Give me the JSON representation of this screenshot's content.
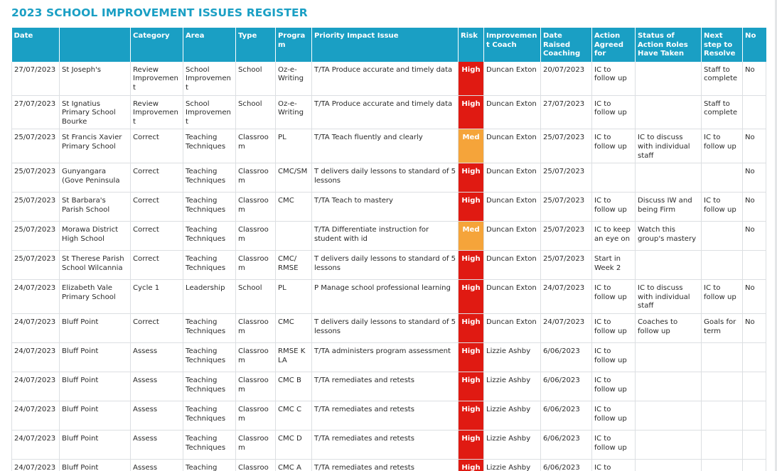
{
  "page": {
    "title": "2023 SCHOOL IMPROVEMENT ISSUES REGISTER"
  },
  "colors": {
    "header_bg": "#1a9fc4",
    "title": "#1a9fc4",
    "risk_high": "#e01a12",
    "risk_med": "#f5a43a"
  },
  "table": {
    "headers": {
      "date": "Date",
      "school": "",
      "category": "Category",
      "area": "Area",
      "type": "Type",
      "program": "Program",
      "issue": "Priority Impact Issue",
      "risk": "Risk",
      "coach": "Improvement Coach",
      "raised": "Date Raised Coaching",
      "action": "Action Agreed for",
      "status": "Status of Action Roles Have Taken",
      "next": "Next step to Resolve",
      "no": "No"
    },
    "rows": [
      {
        "date": "27/07/2023",
        "school": "St Joseph's",
        "category": "Review Improvement",
        "area": "School Improvement",
        "type": "School",
        "program": "Oz-e-Writing",
        "issue": "T/TA Produce accurate and timely data",
        "risk": "High",
        "risk_level": "high",
        "coach": "Duncan Exton",
        "raised": "20/07/2023",
        "action": "IC to follow up",
        "status": "",
        "next": "Staff to complete",
        "no": "No"
      },
      {
        "date": "27/07/2023",
        "school": "St Ignatius Primary School Bourke",
        "category": "Review Improvement",
        "area": "School Improvement",
        "type": "School",
        "program": "Oz-e-Writing",
        "issue": "T/TA Produce accurate and timely data",
        "risk": "High",
        "risk_level": "high",
        "coach": "Duncan Exton",
        "raised": "27/07/2023",
        "action": "IC to follow up",
        "status": "",
        "next": "Staff to complete",
        "no": ""
      },
      {
        "date": "25/07/2023",
        "school": "St Francis Xavier Primary School",
        "category": "Correct",
        "area": "Teaching Techniques",
        "type": "Classroom",
        "program": "PL",
        "issue": "T/TA Teach fluently and clearly",
        "risk": "Med",
        "risk_level": "med",
        "coach": "Duncan Exton",
        "raised": "25/07/2023",
        "action": "IC to follow up",
        "status": "IC to discuss with individual staff",
        "next": "IC to follow up",
        "no": "No"
      },
      {
        "date": "25/07/2023",
        "school": "Gunyangara (Gove Peninsula",
        "category": "Correct",
        "area": "Teaching Techniques",
        "type": "Classroom",
        "program": "CMC/SM",
        "issue": "T delivers daily lessons to standard of 5 lessons",
        "risk": "High",
        "risk_level": "high",
        "coach": "Duncan Exton",
        "raised": "25/07/2023",
        "action": "",
        "status": "",
        "next": "",
        "no": "No"
      },
      {
        "date": "25/07/2023",
        "school": "St Barbara's Parish School",
        "category": "Correct",
        "area": "Teaching Techniques",
        "type": "Classroom",
        "program": "CMC",
        "issue": "T/TA Teach to mastery",
        "risk": "High",
        "risk_level": "high",
        "coach": "Duncan Exton",
        "raised": "25/07/2023",
        "action": "IC to follow up",
        "status": "Discuss IW and being Firm",
        "next": "IC to follow up",
        "no": "No"
      },
      {
        "date": "25/07/2023",
        "school": "Morawa District High School",
        "category": "Correct",
        "area": "Teaching Techniques",
        "type": "Classroom",
        "program": "",
        "issue": "T/TA Differentiate instruction for student with id",
        "risk": "Med",
        "risk_level": "med",
        "coach": "Duncan Exton",
        "raised": "25/07/2023",
        "action": "IC to keep an eye on",
        "status": "Watch this group's mastery",
        "next": "",
        "no": "No"
      },
      {
        "date": "25/07/2023",
        "school": "St Therese Parish School Wilcannia",
        "category": "Correct",
        "area": "Teaching Techniques",
        "type": "Classroom",
        "program": "CMC/ RMSE",
        "issue": "T delivers daily lessons to standard of 5 lessons",
        "risk": "High",
        "risk_level": "high",
        "coach": "Duncan Exton",
        "raised": "25/07/2023",
        "action": "Start in Week 2",
        "status": "",
        "next": "",
        "no": ""
      },
      {
        "date": "24/07/2023",
        "school": "Elizabeth Vale Primary School",
        "category": "Cycle 1",
        "area": "Leadership",
        "type": "School",
        "program": "PL",
        "issue": "P Manage school professional learning",
        "risk": "High",
        "risk_level": "high",
        "coach": "Duncan Exton",
        "raised": "24/07/2023",
        "action": "IC to follow up",
        "status": "IC to discuss with individual staff",
        "next": "IC to follow up",
        "no": "No"
      },
      {
        "date": "24/07/2023",
        "school": "Bluff Point",
        "category": "Correct",
        "area": "Teaching Techniques",
        "type": "Classroom",
        "program": "CMC",
        "issue": "T delivers daily lessons to standard of 5 lessons",
        "risk": "High",
        "risk_level": "high",
        "coach": "Duncan Exton",
        "raised": "24/07/2023",
        "action": "IC to follow up",
        "status": "Coaches to follow up",
        "next": "Goals for term",
        "no": "No"
      },
      {
        "date": "24/07/2023",
        "school": "Bluff Point",
        "category": "Assess",
        "area": "Teaching Techniques",
        "type": "Classroom",
        "program": "RMSE K LA",
        "issue": "T/TA administers program assessment",
        "risk": "High",
        "risk_level": "high",
        "coach": "Lizzie Ashby",
        "raised": "6/06/2023",
        "action": "IC to follow up",
        "status": "",
        "next": "",
        "no": ""
      },
      {
        "date": "24/07/2023",
        "school": "Bluff Point",
        "category": "Assess",
        "area": "Teaching Techniques",
        "type": "Classroom",
        "program": "CMC B",
        "issue": "T/TA remediates and retests",
        "risk": "High",
        "risk_level": "high",
        "coach": "Lizzie Ashby",
        "raised": "6/06/2023",
        "action": "IC to follow up",
        "status": "",
        "next": "",
        "no": ""
      },
      {
        "date": "24/07/2023",
        "school": "Bluff Point",
        "category": "Assess",
        "area": "Teaching Techniques",
        "type": "Classroom",
        "program": "CMC C",
        "issue": "T/TA remediates and retests",
        "risk": "High",
        "risk_level": "high",
        "coach": "Lizzie Ashby",
        "raised": "6/06/2023",
        "action": "IC to follow up",
        "status": "",
        "next": "",
        "no": ""
      },
      {
        "date": "24/07/2023",
        "school": "Bluff Point",
        "category": "Assess",
        "area": "Teaching Techniques",
        "type": "Classroom",
        "program": "CMC D",
        "issue": "T/TA remediates and retests",
        "risk": "High",
        "risk_level": "high",
        "coach": "Lizzie Ashby",
        "raised": "6/06/2023",
        "action": "IC to follow up",
        "status": "",
        "next": "",
        "no": ""
      },
      {
        "date": "24/07/2023",
        "school": "Bluff Point",
        "category": "Assess",
        "area": "Teaching Techniques",
        "type": "Classroom",
        "program": "CMC A",
        "issue": "T/TA remediates and retests",
        "risk": "High",
        "risk_level": "high",
        "coach": "Lizzie Ashby",
        "raised": "6/06/2023",
        "action": "IC to follow up",
        "status": "",
        "next": "",
        "no": ""
      }
    ]
  }
}
